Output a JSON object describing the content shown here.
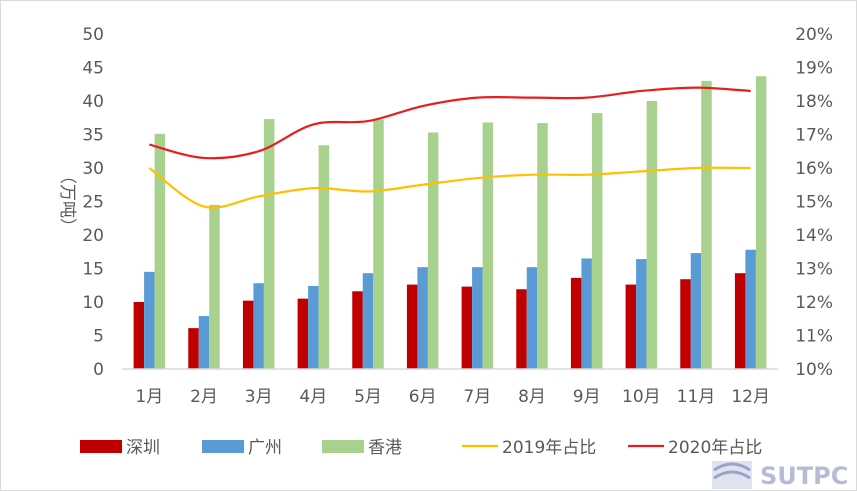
{
  "chart_data": {
    "type": "bar",
    "categories": [
      "1月",
      "2月",
      "3月",
      "4月",
      "5月",
      "6月",
      "7月",
      "8月",
      "9月",
      "10月",
      "11月",
      "12月"
    ],
    "ylabel": "（万吨）",
    "ylim": [
      0,
      50
    ],
    "yticks": [
      "0",
      "5",
      "10",
      "15",
      "20",
      "25",
      "30",
      "35",
      "40",
      "45",
      "50"
    ],
    "y2lim": [
      10,
      20
    ],
    "y2ticks": [
      "10%",
      "11%",
      "12%",
      "13%",
      "14%",
      "15%",
      "16%",
      "17%",
      "18%",
      "19%",
      "20%"
    ],
    "grid": false,
    "legend_position": "bottom",
    "series": [
      {
        "name": "深圳",
        "type": "bar",
        "axis": "left",
        "color": "#C00000",
        "values": [
          10.0,
          6.1,
          10.2,
          10.5,
          11.6,
          12.6,
          12.3,
          11.9,
          13.6,
          12.6,
          13.4,
          14.3
        ]
      },
      {
        "name": "广州",
        "type": "bar",
        "axis": "left",
        "color": "#5B9BD5",
        "values": [
          14.5,
          7.9,
          12.8,
          12.4,
          14.3,
          15.2,
          15.2,
          15.2,
          16.5,
          16.4,
          17.3,
          17.8
        ]
      },
      {
        "name": "香港",
        "type": "bar",
        "axis": "left",
        "color": "#A9D18E",
        "values": [
          35.1,
          24.5,
          37.3,
          33.4,
          37.2,
          35.3,
          36.8,
          36.7,
          38.2,
          40.0,
          43.0,
          43.7
        ]
      },
      {
        "name": "2019年占比",
        "type": "line",
        "axis": "right",
        "color": "#FFC000",
        "values": [
          16.0,
          14.85,
          15.15,
          15.4,
          15.3,
          15.5,
          15.7,
          15.8,
          15.8,
          15.9,
          16.0,
          16.0
        ]
      },
      {
        "name": "2020年占比",
        "type": "line",
        "axis": "right",
        "color": "#E81E1E",
        "values": [
          16.7,
          16.3,
          16.5,
          17.3,
          17.4,
          17.85,
          18.1,
          18.1,
          18.1,
          18.3,
          18.4,
          18.3
        ]
      }
    ]
  },
  "watermark": "SUTPC"
}
